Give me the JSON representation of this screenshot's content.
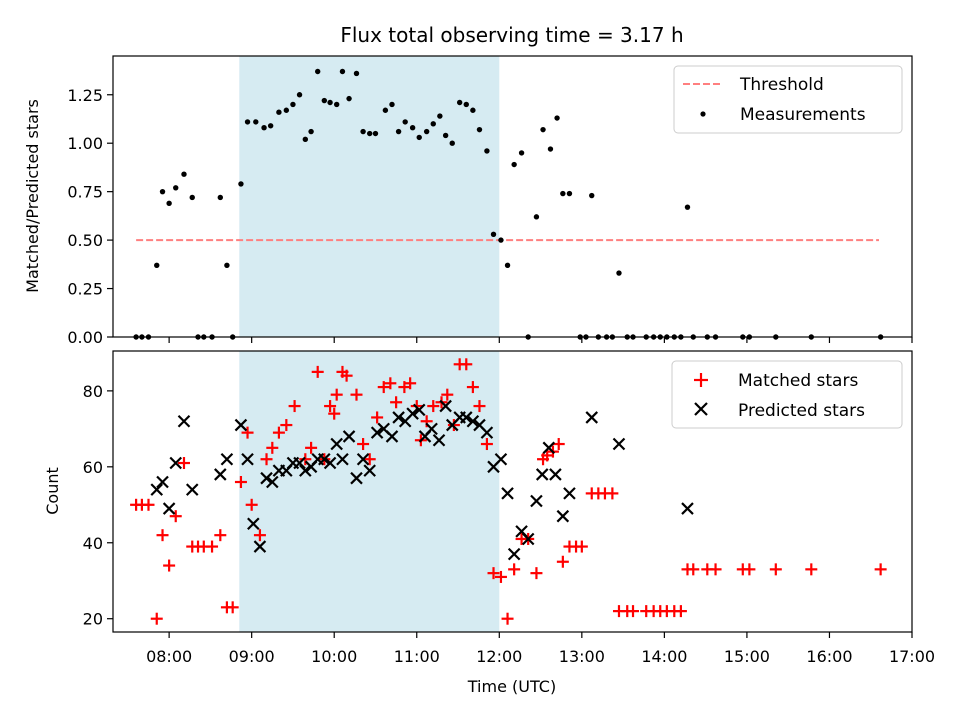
{
  "chart_data": [
    {
      "type": "scatter",
      "title": "Flux total observing time = 3.17 h",
      "ylabel": "Matched/Predicted stars",
      "ylim": [
        0,
        1.45
      ],
      "xlim_hours": [
        7.32,
        17.0
      ],
      "yticks": [
        0.0,
        0.25,
        0.5,
        0.75,
        1.0,
        1.25
      ],
      "ytick_labels": [
        "0.00",
        "0.25",
        "0.50",
        "0.75",
        "1.00",
        "1.25"
      ],
      "shaded_span_hours": [
        8.85,
        12.0
      ],
      "threshold": {
        "name": "Threshold",
        "value": 0.5,
        "x_range_hours": [
          7.6,
          16.6
        ],
        "color": "#ff7f7f"
      },
      "legend": [
        "Threshold",
        "Measurements"
      ],
      "legend_location": "top-right",
      "series": [
        {
          "name": "Measurements",
          "points": [
            [
              7.6,
              0.0
            ],
            [
              7.67,
              0.0
            ],
            [
              7.75,
              0.0
            ],
            [
              7.85,
              0.37
            ],
            [
              7.92,
              0.75
            ],
            [
              8.0,
              0.69
            ],
            [
              8.08,
              0.77
            ],
            [
              8.18,
              0.84
            ],
            [
              8.28,
              0.72
            ],
            [
              8.35,
              0.0
            ],
            [
              8.42,
              0.0
            ],
            [
              8.52,
              0.0
            ],
            [
              8.62,
              0.72
            ],
            [
              8.7,
              0.37
            ],
            [
              8.77,
              0.0
            ],
            [
              8.87,
              0.79
            ],
            [
              8.95,
              1.11
            ],
            [
              9.05,
              1.11
            ],
            [
              9.15,
              1.08
            ],
            [
              9.23,
              1.09
            ],
            [
              9.33,
              1.16
            ],
            [
              9.42,
              1.17
            ],
            [
              9.5,
              1.2
            ],
            [
              9.58,
              1.25
            ],
            [
              9.65,
              1.02
            ],
            [
              9.72,
              1.06
            ],
            [
              9.8,
              1.37
            ],
            [
              9.88,
              1.22
            ],
            [
              9.95,
              1.21
            ],
            [
              10.03,
              1.2
            ],
            [
              10.1,
              1.37
            ],
            [
              10.18,
              1.23
            ],
            [
              10.27,
              1.36
            ],
            [
              10.35,
              1.06
            ],
            [
              10.43,
              1.05
            ],
            [
              10.5,
              1.05
            ],
            [
              10.62,
              1.17
            ],
            [
              10.7,
              1.2
            ],
            [
              10.78,
              1.06
            ],
            [
              10.86,
              1.11
            ],
            [
              10.95,
              1.08
            ],
            [
              11.03,
              1.03
            ],
            [
              11.12,
              1.06
            ],
            [
              11.2,
              1.1
            ],
            [
              11.28,
              1.14
            ],
            [
              11.35,
              1.04
            ],
            [
              11.43,
              1.0
            ],
            [
              11.52,
              1.21
            ],
            [
              11.6,
              1.2
            ],
            [
              11.68,
              1.17
            ],
            [
              11.76,
              1.07
            ],
            [
              11.85,
              0.96
            ],
            [
              11.93,
              0.53
            ],
            [
              12.02,
              0.5
            ],
            [
              12.1,
              0.37
            ],
            [
              12.18,
              0.89
            ],
            [
              12.27,
              0.95
            ],
            [
              12.35,
              0.0
            ],
            [
              12.45,
              0.62
            ],
            [
              12.53,
              1.07
            ],
            [
              12.62,
              0.97
            ],
            [
              12.7,
              1.13
            ],
            [
              12.77,
              0.74
            ],
            [
              12.85,
              0.74
            ],
            [
              12.98,
              0.0
            ],
            [
              13.05,
              0.0
            ],
            [
              13.12,
              0.73
            ],
            [
              13.2,
              0.0
            ],
            [
              13.3,
              0.0
            ],
            [
              13.37,
              0.0
            ],
            [
              13.45,
              0.33
            ],
            [
              13.55,
              0.0
            ],
            [
              13.62,
              0.0
            ],
            [
              13.78,
              0.0
            ],
            [
              13.87,
              0.0
            ],
            [
              13.95,
              0.0
            ],
            [
              14.03,
              0.0
            ],
            [
              14.12,
              0.0
            ],
            [
              14.2,
              0.0
            ],
            [
              14.28,
              0.67
            ],
            [
              14.35,
              0.0
            ],
            [
              14.52,
              0.0
            ],
            [
              14.62,
              0.0
            ],
            [
              14.95,
              0.0
            ],
            [
              15.03,
              0.0
            ],
            [
              15.35,
              0.0
            ],
            [
              15.78,
              0.0
            ],
            [
              16.62,
              0.0
            ]
          ]
        }
      ]
    },
    {
      "type": "scatter",
      "xlabel": "Time (UTC)",
      "ylabel": "Count",
      "ylim": [
        16.5,
        90.5
      ],
      "xlim_hours": [
        7.32,
        17.0
      ],
      "yticks": [
        20,
        40,
        60,
        80
      ],
      "ytick_labels": [
        "20",
        "40",
        "60",
        "80"
      ],
      "xticks_hours": [
        8,
        9,
        10,
        11,
        12,
        13,
        14,
        15,
        16,
        17
      ],
      "xtick_labels": [
        "08:00",
        "09:00",
        "10:00",
        "11:00",
        "12:00",
        "13:00",
        "14:00",
        "15:00",
        "16:00",
        "17:00"
      ],
      "shaded_span_hours": [
        8.85,
        12.0
      ],
      "legend": [
        "Matched stars",
        "Predicted stars"
      ],
      "legend_location": "top-right",
      "series": [
        {
          "name": "Matched stars",
          "marker": "plus",
          "color": "#ff0000",
          "points": [
            [
              7.6,
              50
            ],
            [
              7.67,
              50
            ],
            [
              7.75,
              50
            ],
            [
              7.85,
              20
            ],
            [
              7.92,
              42
            ],
            [
              8.0,
              34
            ],
            [
              8.08,
              47
            ],
            [
              8.18,
              61
            ],
            [
              8.28,
              39
            ],
            [
              8.35,
              39
            ],
            [
              8.42,
              39
            ],
            [
              8.52,
              39
            ],
            [
              8.62,
              42
            ],
            [
              8.7,
              23
            ],
            [
              8.77,
              23
            ],
            [
              8.87,
              56
            ],
            [
              8.95,
              69
            ],
            [
              9.0,
              50
            ],
            [
              9.1,
              42
            ],
            [
              9.18,
              62
            ],
            [
              9.25,
              65
            ],
            [
              9.33,
              69
            ],
            [
              9.42,
              71
            ],
            [
              9.52,
              76
            ],
            [
              9.65,
              62
            ],
            [
              9.72,
              65
            ],
            [
              9.8,
              85
            ],
            [
              9.88,
              62
            ],
            [
              9.95,
              76
            ],
            [
              10.0,
              74
            ],
            [
              10.03,
              79
            ],
            [
              10.1,
              85
            ],
            [
              10.15,
              84
            ],
            [
              10.27,
              79
            ],
            [
              10.35,
              66
            ],
            [
              10.43,
              62
            ],
            [
              10.52,
              73
            ],
            [
              10.6,
              81
            ],
            [
              10.68,
              82
            ],
            [
              10.75,
              77
            ],
            [
              10.85,
              81
            ],
            [
              10.92,
              82
            ],
            [
              11.0,
              76
            ],
            [
              11.05,
              67
            ],
            [
              11.12,
              72
            ],
            [
              11.2,
              76
            ],
            [
              11.3,
              77
            ],
            [
              11.37,
              79
            ],
            [
              11.45,
              71
            ],
            [
              11.52,
              87
            ],
            [
              11.6,
              87
            ],
            [
              11.68,
              81
            ],
            [
              11.76,
              76
            ],
            [
              11.85,
              66
            ],
            [
              11.93,
              32
            ],
            [
              12.02,
              31
            ],
            [
              12.1,
              20
            ],
            [
              12.18,
              33
            ],
            [
              12.27,
              41
            ],
            [
              12.35,
              41
            ],
            [
              12.45,
              32
            ],
            [
              12.53,
              62
            ],
            [
              12.58,
              63
            ],
            [
              12.65,
              64
            ],
            [
              12.72,
              66
            ],
            [
              12.77,
              35
            ],
            [
              12.85,
              39
            ],
            [
              12.93,
              39
            ],
            [
              13.0,
              39
            ],
            [
              13.12,
              53
            ],
            [
              13.2,
              53
            ],
            [
              13.28,
              53
            ],
            [
              13.37,
              53
            ],
            [
              13.45,
              22
            ],
            [
              13.55,
              22
            ],
            [
              13.62,
              22
            ],
            [
              13.78,
              22
            ],
            [
              13.87,
              22
            ],
            [
              13.95,
              22
            ],
            [
              14.03,
              22
            ],
            [
              14.12,
              22
            ],
            [
              14.2,
              22
            ],
            [
              14.28,
              33
            ],
            [
              14.35,
              33
            ],
            [
              14.52,
              33
            ],
            [
              14.62,
              33
            ],
            [
              14.95,
              33
            ],
            [
              15.03,
              33
            ],
            [
              15.35,
              33
            ],
            [
              15.78,
              33
            ],
            [
              16.62,
              33
            ]
          ]
        },
        {
          "name": "Predicted stars",
          "marker": "x",
          "color": "#000000",
          "points": [
            [
              7.85,
              54
            ],
            [
              7.92,
              56
            ],
            [
              8.0,
              49
            ],
            [
              8.08,
              61
            ],
            [
              8.18,
              72
            ],
            [
              8.28,
              54
            ],
            [
              8.62,
              58
            ],
            [
              8.7,
              62
            ],
            [
              8.87,
              71
            ],
            [
              8.95,
              62
            ],
            [
              9.02,
              45
            ],
            [
              9.1,
              39
            ],
            [
              9.18,
              57
            ],
            [
              9.25,
              56
            ],
            [
              9.33,
              59
            ],
            [
              9.42,
              59
            ],
            [
              9.5,
              61
            ],
            [
              9.58,
              61
            ],
            [
              9.65,
              59
            ],
            [
              9.72,
              60
            ],
            [
              9.8,
              62
            ],
            [
              9.88,
              62
            ],
            [
              9.95,
              61
            ],
            [
              10.03,
              66
            ],
            [
              10.1,
              62
            ],
            [
              10.18,
              68
            ],
            [
              10.27,
              57
            ],
            [
              10.35,
              62
            ],
            [
              10.43,
              59
            ],
            [
              10.52,
              69
            ],
            [
              10.6,
              70
            ],
            [
              10.7,
              68
            ],
            [
              10.78,
              73
            ],
            [
              10.86,
              72
            ],
            [
              10.95,
              74
            ],
            [
              11.03,
              75
            ],
            [
              11.1,
              68
            ],
            [
              11.18,
              70
            ],
            [
              11.27,
              67
            ],
            [
              11.35,
              76
            ],
            [
              11.43,
              71
            ],
            [
              11.52,
              73
            ],
            [
              11.6,
              73
            ],
            [
              11.68,
              72
            ],
            [
              11.76,
              71
            ],
            [
              11.85,
              69
            ],
            [
              11.93,
              60
            ],
            [
              12.02,
              62
            ],
            [
              12.1,
              53
            ],
            [
              12.18,
              37
            ],
            [
              12.27,
              43
            ],
            [
              12.35,
              41
            ],
            [
              12.45,
              51
            ],
            [
              12.52,
              58
            ],
            [
              12.6,
              65
            ],
            [
              12.68,
              58
            ],
            [
              12.77,
              47
            ],
            [
              12.85,
              53
            ],
            [
              13.12,
              73
            ],
            [
              13.45,
              66
            ],
            [
              14.28,
              49
            ]
          ]
        }
      ]
    }
  ]
}
